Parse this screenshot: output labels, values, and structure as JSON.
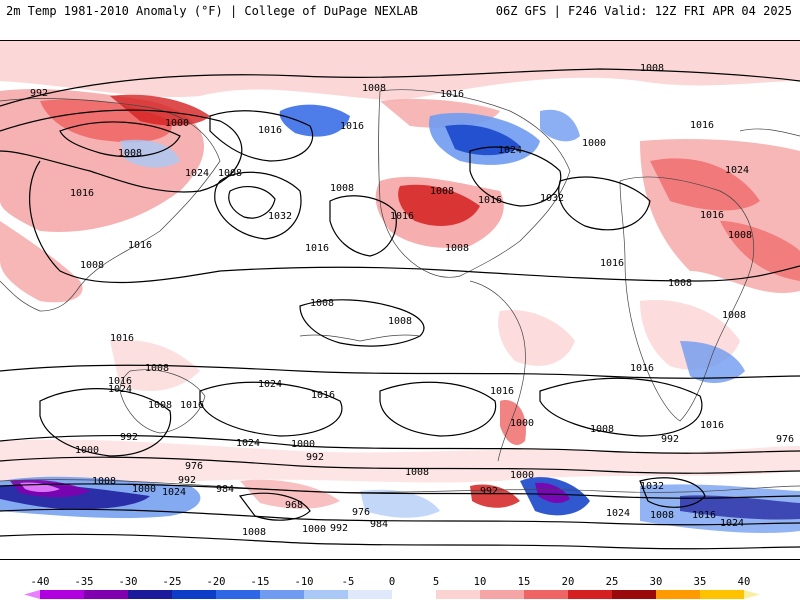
{
  "header": {
    "left_title": "2m Temp 1981-2010 Anomaly (°F) | College of DuPage NEXLAB",
    "right_title": "06Z GFS | F246 Valid: 12Z FRI APR 04 2025"
  },
  "colorbar": {
    "ticks": [
      "-40",
      "-35",
      "-30",
      "-25",
      "-20",
      "-15",
      "-10",
      "-5",
      "0",
      "5",
      "10",
      "15",
      "20",
      "25",
      "30",
      "35",
      "40"
    ],
    "colors": [
      "#e880ff",
      "#b000e0",
      "#8000b0",
      "#1a1a9a",
      "#0c3cc8",
      "#2f66e6",
      "#6f9bf0",
      "#aac8f6",
      "#dfe9fb",
      "#ffffff",
      "#fbd3d3",
      "#f5a5a5",
      "#ef6464",
      "#d42020",
      "#9a0a0a",
      "#ff9a00",
      "#ffc200",
      "#fff000"
    ]
  },
  "map": {
    "isobar_labels": [
      "992",
      "1000",
      "1008",
      "1016",
      "1024",
      "1008",
      "1016",
      "1016",
      "1032",
      "1016",
      "1016",
      "1008",
      "1016",
      "1008",
      "1008",
      "1008",
      "1008",
      "1016",
      "1016",
      "1024",
      "1000",
      "1008",
      "1032",
      "1008",
      "1024",
      "1016",
      "1016",
      "1016",
      "1016",
      "1008",
      "1008",
      "1008",
      "1008",
      "1016",
      "1024",
      "1008",
      "1016",
      "1024",
      "1016",
      "992",
      "1000",
      "1024",
      "1000",
      "992",
      "1008",
      "1016",
      "1000",
      "992",
      "1008",
      "1016",
      "976",
      "976",
      "992",
      "1000",
      "1024",
      "984",
      "968",
      "976",
      "992",
      "984",
      "1000",
      "1008",
      "992",
      "1000",
      "1008",
      "1016",
      "1024",
      "1008",
      "1016",
      "1024",
      "1032",
      "1008"
    ]
  }
}
